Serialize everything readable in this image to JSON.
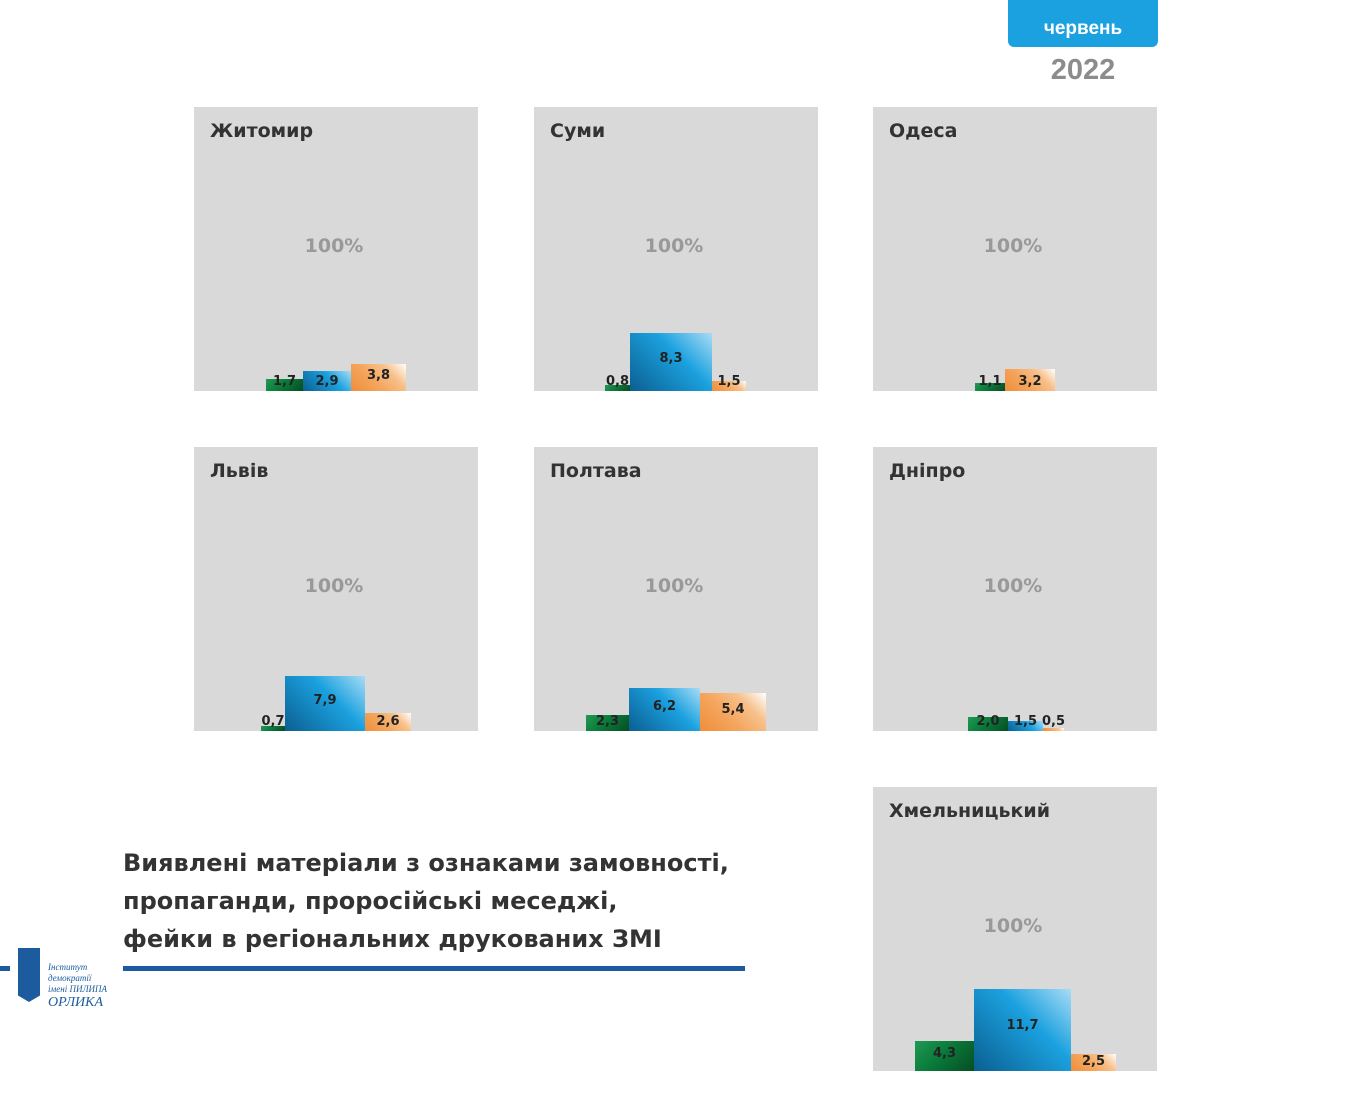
{
  "header": {
    "month": "червень",
    "year": "2022"
  },
  "caption": {
    "lines": [
      "Виявлені матеріали з ознаками замовності,",
      "пропаганди, проросійські меседжі,",
      "фейки в регіональних друкованих ЗМІ"
    ]
  },
  "logo": {
    "line1": "Інститут демократії",
    "line2": "імені ПИЛИПА",
    "line3": "ОРЛИКА"
  },
  "colors": {
    "green": "#0a7a3a",
    "blue": "#1ba1df",
    "orange": "#f5a55c",
    "panel": "#d9d9d9"
  },
  "chart_data": [
    {
      "type": "bar",
      "title": "Житомир",
      "total_label": "100%",
      "series": [
        {
          "values": [
            1.7
          ],
          "labels": [
            "1,7"
          ]
        },
        {
          "values": [
            2.9
          ],
          "labels": [
            "2,9"
          ]
        },
        {
          "values": [
            3.8
          ],
          "labels": [
            "3,8"
          ]
        }
      ]
    },
    {
      "type": "bar",
      "title": "Суми",
      "total_label": "100%",
      "series": [
        {
          "values": [
            0.8
          ],
          "labels": [
            "0,8"
          ]
        },
        {
          "values": [
            8.3
          ],
          "labels": [
            "8,3"
          ]
        },
        {
          "values": [
            1.5
          ],
          "labels": [
            "1,5"
          ]
        }
      ]
    },
    {
      "type": "bar",
      "title": "Одеса",
      "total_label": "100%",
      "series": [
        {
          "values": [
            1.1
          ],
          "labels": [
            "1,1"
          ]
        },
        {
          "values": [
            0
          ],
          "labels": [
            ""
          ]
        },
        {
          "values": [
            3.2
          ],
          "labels": [
            "3,2"
          ]
        }
      ]
    },
    {
      "type": "bar",
      "title": "Львів",
      "total_label": "100%",
      "series": [
        {
          "values": [
            0.7
          ],
          "labels": [
            "0,7"
          ]
        },
        {
          "values": [
            7.9
          ],
          "labels": [
            "7,9"
          ]
        },
        {
          "values": [
            2.6
          ],
          "labels": [
            "2,6"
          ]
        }
      ]
    },
    {
      "type": "bar",
      "title": "Полтава",
      "total_label": "100%",
      "series": [
        {
          "values": [
            2.3
          ],
          "labels": [
            "2,3"
          ]
        },
        {
          "values": [
            6.2
          ],
          "labels": [
            "6,2"
          ]
        },
        {
          "values": [
            5.4
          ],
          "labels": [
            "5,4"
          ]
        }
      ]
    },
    {
      "type": "bar",
      "title": "Дніпро",
      "total_label": "100%",
      "series": [
        {
          "values": [
            2.0
          ],
          "labels": [
            "2,0"
          ]
        },
        {
          "values": [
            1.5
          ],
          "labels": [
            "1,5"
          ]
        },
        {
          "values": [
            0.5
          ],
          "labels": [
            "0,5"
          ]
        }
      ]
    },
    {
      "type": "bar",
      "title": "Хмельницький",
      "total_label": "100%",
      "series": [
        {
          "values": [
            4.3
          ],
          "labels": [
            "4,3"
          ]
        },
        {
          "values": [
            11.7
          ],
          "labels": [
            "11,7"
          ]
        },
        {
          "values": [
            2.5
          ],
          "labels": [
            "2,5"
          ]
        }
      ]
    }
  ]
}
